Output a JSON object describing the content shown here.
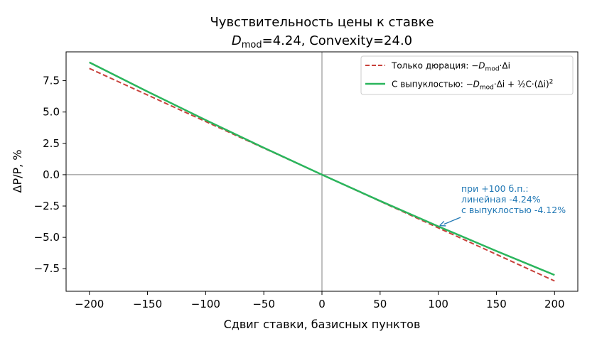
{
  "chart_data": {
    "type": "line",
    "title": {
      "line1": "Чувствительность цены к ставке",
      "line2_D": "D",
      "line2_sub": "mod",
      "line2_rest": "=4.24, Convexity=24.0"
    },
    "xlabel": "Сдвиг ставки, базисных пунктов",
    "ylabel": "ΔP/P, %",
    "xlim": [
      -220,
      220
    ],
    "ylim": [
      -9.3,
      9.8
    ],
    "xticks": [
      -200,
      -150,
      -100,
      -50,
      0,
      50,
      100,
      150,
      200
    ],
    "xtick_labels": [
      "−200",
      "−150",
      "−100",
      "−50",
      "0",
      "50",
      "100",
      "150",
      "200"
    ],
    "yticks": [
      7.5,
      5.0,
      2.5,
      0.0,
      -2.5,
      -5.0,
      -7.5
    ],
    "ytick_labels": [
      "7.5",
      "5.0",
      "2.5",
      "0.0",
      "−2.5",
      "−5.0",
      "−7.5"
    ],
    "grid": false,
    "reference_lines": {
      "x": 0,
      "y": 0
    },
    "legend_position": "upper right",
    "series": [
      {
        "name": "Только дюрация: −D_mod·Δi",
        "style": "dashed",
        "color": "#c8413b",
        "x": [
          -200,
          -150,
          -100,
          -50,
          0,
          50,
          100,
          150,
          200
        ],
        "y": [
          8.48,
          6.36,
          4.24,
          2.12,
          0.0,
          -2.12,
          -4.24,
          -6.36,
          -8.48
        ]
      },
      {
        "name": "С выпуклостью: −D_mod·Δi + ½C·(Δi)²",
        "style": "solid",
        "color": "#2ab55c",
        "x": [
          -200,
          -150,
          -100,
          -50,
          0,
          50,
          100,
          150,
          200
        ],
        "y": [
          8.96,
          6.63,
          4.36,
          2.15,
          0.0,
          -2.09,
          -4.12,
          -6.09,
          -8.0
        ]
      }
    ],
    "legend": {
      "entry1_prefix": "Только дюрация: −",
      "entry2_prefix": "С выпуклостью: −",
      "D": "D",
      "sub": "mod",
      "delta_i": "·Δi",
      "plus": " + ½C·(Δi)",
      "sup": "2"
    },
    "annotation": {
      "lines": [
        "при +100 б.п.:",
        "линейная -4.24%",
        "с выпуклостью -4.12%"
      ],
      "point": {
        "x": 100,
        "y": -4.12
      },
      "color": "#1f77b4"
    }
  }
}
